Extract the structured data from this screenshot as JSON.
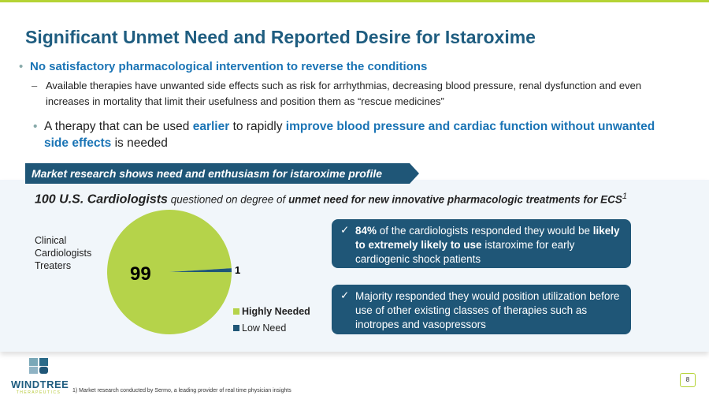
{
  "title": "Significant Unmet Need and Reported Desire for Istaroxime",
  "bullet1": "No satisfactory pharmacological intervention to reverse the conditions",
  "sub1": "Available therapies have unwanted side effects such as risk for arrhythmias, decreasing blood pressure, renal dysfunction and even increases in mortality that limit their usefulness and position them as “rescue medicines”",
  "bullet2": {
    "p1": "A therapy that can be used ",
    "h1": "earlier",
    "p2": " to rapidly ",
    "h2": "improve blood pressure and cardiac function without unwanted side effects",
    "p3": " is needed"
  },
  "banner": "Market research shows need and enthusiasm for istaroxime profile",
  "question": {
    "lead": "100 U.S. Cardiologists",
    "mid": " questioned on degree of ",
    "bold": "unmet need for new innovative pharmacologic treatments for ECS",
    "sup": "1"
  },
  "group_label": [
    "Clinical",
    "Cardiologists",
    "Treaters"
  ],
  "chart_data": {
    "type": "pie",
    "categories": [
      "Highly Needed",
      "Low Need"
    ],
    "values": [
      99,
      1
    ],
    "colors": [
      "#b5d34a",
      "#1f5677"
    ],
    "data_labels": [
      "99",
      "1"
    ],
    "legend": "bottom-right"
  },
  "cards": [
    {
      "check": "✓",
      "bold1": "84%",
      "t1": " of the cardiologists responded they would be ",
      "bold2": "likely to extremely likely to use",
      "t2": " istaroxime for early cardiogenic shock patients"
    },
    {
      "check": "✓",
      "t1": "Majority responded they would position utilization before use of other existing classes of therapies such as inotropes and vasopressors"
    }
  ],
  "logo": {
    "name": "WINDTREE",
    "sub": "THERAPEUTICS"
  },
  "footnote": "1) Market research conducted by Sermo, a leading provider of real time physician insights",
  "page": "8"
}
